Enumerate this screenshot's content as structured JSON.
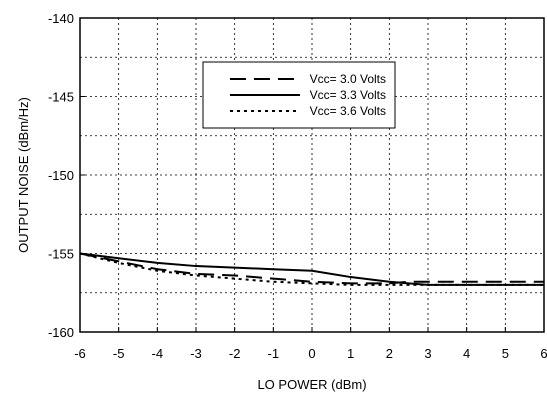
{
  "chart_data": {
    "type": "line",
    "title": "",
    "xlabel": "LO POWER (dBm)",
    "ylabel": "OUTPUT NOISE (dBm/Hz)",
    "xlim": [
      -6,
      6
    ],
    "ylim": [
      -160,
      -140
    ],
    "xticks": [
      "-6",
      "-5",
      "-4",
      "-3",
      "-2",
      "-1",
      "0",
      "1",
      "2",
      "3",
      "4",
      "5",
      "6"
    ],
    "yticks": [
      "-140",
      "-145",
      "-150",
      "-155",
      "-160"
    ],
    "grid": true,
    "legend_position": "top-right",
    "series": [
      {
        "name": "Vcc= 3.0 Volts",
        "style": "long-dash",
        "color": "#000000",
        "x": [
          -6,
          -5,
          -4,
          -3,
          -2,
          -1,
          0,
          1,
          2,
          2.5,
          3,
          4,
          5,
          6
        ],
        "y": [
          -155.0,
          -155.5,
          -156.0,
          -156.3,
          -156.4,
          -156.6,
          -156.8,
          -156.9,
          -156.9,
          -156.8,
          -156.8,
          -156.8,
          -156.8,
          -156.8
        ]
      },
      {
        "name": "Vcc= 3.3 Volts",
        "style": "solid",
        "color": "#000000",
        "x": [
          -6,
          -5,
          -4,
          -3,
          -2,
          -1,
          0,
          1,
          2,
          2.5,
          3,
          4,
          5,
          6
        ],
        "y": [
          -155.0,
          -155.3,
          -155.6,
          -155.8,
          -155.9,
          -156.0,
          -156.1,
          -156.5,
          -156.8,
          -156.9,
          -157.0,
          -157.0,
          -157.0,
          -157.0
        ]
      },
      {
        "name": "Vcc= 3.6 Volts",
        "style": "dotted",
        "color": "#000000",
        "x": [
          -6,
          -5,
          -4,
          -3,
          -2,
          -1,
          0,
          1,
          2,
          3,
          4,
          5,
          6
        ],
        "y": [
          -155.0,
          -155.6,
          -156.1,
          -156.4,
          -156.6,
          -156.8,
          -156.9,
          -157.0,
          -157.0,
          -157.0,
          -157.0,
          -157.0,
          -157.0
        ]
      }
    ]
  }
}
